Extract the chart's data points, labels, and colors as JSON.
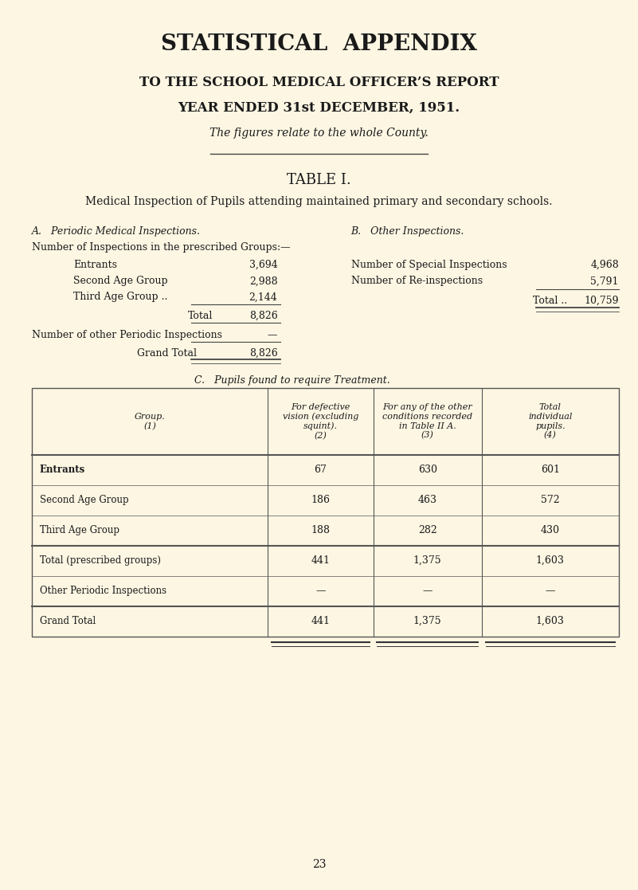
{
  "bg_color": "#fdf6e3",
  "title1": "STATISTICAL  APPENDIX",
  "title2": "TO THE SCHOOL MEDICAL OFFICER’S REPORT",
  "title3": "YEAR ENDED 31st DECEMBER, 1951.",
  "title4": "The figures relate to the whole County.",
  "table_title": "TABLE I.",
  "table_subtitle": "Medical Inspection of Pupils attending maintained primary and secondary schools.",
  "section_a_title": "A.   Periodic Medical Inspections.",
  "section_b_title": "B.   Other Inspections.",
  "section_c_title": "C.   Pupils found to require Treatment.",
  "a_prescribed_label": "Number of Inspections in the prescribed Groups:—",
  "a_rows": [
    [
      "Entrants",
      "3,694"
    ],
    [
      "Second Age Group",
      "2,988"
    ],
    [
      "Third Age Group ..",
      "2,144"
    ]
  ],
  "a_total_label": "Total",
  "a_total_value": "8,826",
  "a_other_label": "Number of other Periodic Inspections",
  "a_other_value": "—",
  "a_grand_label": "Grand Total",
  "a_grand_value": "8,826",
  "b_rows": [
    [
      "Number of Special Inspections",
      "4,968"
    ],
    [
      "Number of Re-inspections",
      "5,791"
    ]
  ],
  "b_total_label": "Total ..",
  "b_total_value": "10,759",
  "c_header_col1": "Group.\n(1)",
  "c_header_col2": "For defective\nvision (excluding\nsquint).\n(2)",
  "c_header_col3": "For any of the other\nconditions recorded\nin Table II A.\n(3)",
  "c_header_col4": "Total\nindividual\npupils.\n(4)",
  "c_rows": [
    [
      "Entrants",
      "67",
      "630",
      "601"
    ],
    [
      "Second Age Group",
      "186",
      "463",
      "572"
    ],
    [
      "Third Age Group",
      "188",
      "282",
      "430"
    ],
    [
      "Total (prescribed groups)",
      "441",
      "1,375",
      "1,603"
    ],
    [
      "Other Periodic Inspections",
      "—",
      "—",
      "—"
    ],
    [
      "Grand Total",
      "441",
      "1,375",
      "1,603"
    ]
  ],
  "page_number": "23"
}
